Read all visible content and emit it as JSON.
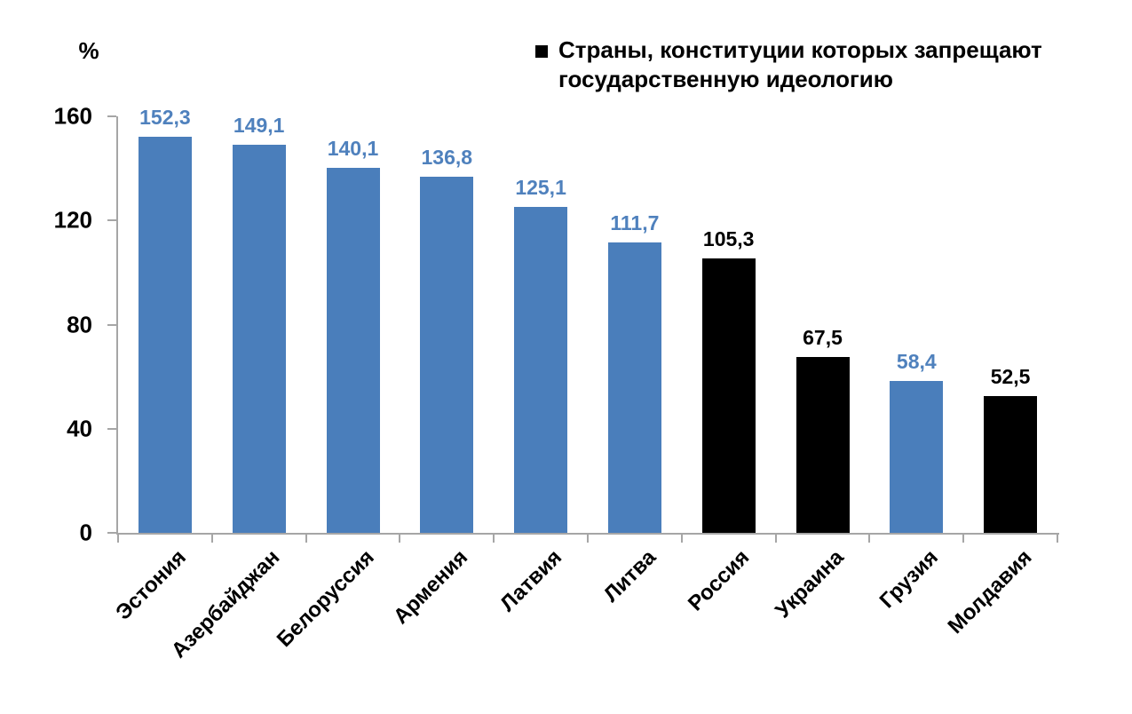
{
  "chart_data": {
    "type": "bar",
    "title": "",
    "unit_label": "%",
    "categories": [
      "Эстония",
      "Азербайджан",
      "Белоруссия",
      "Армения",
      "Латвия",
      "Литва",
      "Россия",
      "Украина",
      "Грузия",
      "Молдавия"
    ],
    "values": [
      152.3,
      149.1,
      140.1,
      136.8,
      125.1,
      111.7,
      105.3,
      67.5,
      58.4,
      52.5
    ],
    "value_labels": [
      "152,3",
      "149,1",
      "140,1",
      "136,8",
      "125,1",
      "111,7",
      "105,3",
      "67,5",
      "58,4",
      "52,5"
    ],
    "bar_series": [
      "default",
      "default",
      "default",
      "default",
      "default",
      "default",
      "ideology_ban",
      "ideology_ban",
      "default",
      "ideology_ban"
    ],
    "series_colors": {
      "default": "#4a7ebb",
      "ideology_ban": "#000000"
    },
    "label_colors": {
      "default": "#4f81bd",
      "ideology_ban": "#000000"
    },
    "axis_color": "#a6a6a6",
    "ylim": [
      0,
      160
    ],
    "yticks": [
      "0",
      "40",
      "80",
      "120",
      "160"
    ],
    "grid": false,
    "legend": {
      "position": "top-right",
      "entries": [
        {
          "label": "Страны, конституции которых запрещают государственную идеологию",
          "color": "#000000"
        }
      ]
    }
  }
}
